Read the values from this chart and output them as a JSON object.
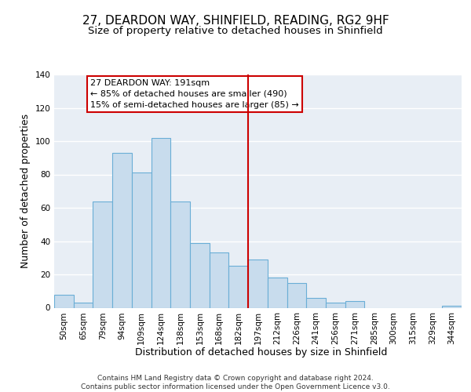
{
  "title": "27, DEARDON WAY, SHINFIELD, READING, RG2 9HF",
  "subtitle": "Size of property relative to detached houses in Shinfield",
  "xlabel": "Distribution of detached houses by size in Shinfield",
  "ylabel": "Number of detached properties",
  "bin_labels": [
    "50sqm",
    "65sqm",
    "79sqm",
    "94sqm",
    "109sqm",
    "124sqm",
    "138sqm",
    "153sqm",
    "168sqm",
    "182sqm",
    "197sqm",
    "212sqm",
    "226sqm",
    "241sqm",
    "256sqm",
    "271sqm",
    "285sqm",
    "300sqm",
    "315sqm",
    "329sqm",
    "344sqm"
  ],
  "bar_heights": [
    8,
    3,
    64,
    93,
    81,
    102,
    64,
    39,
    33,
    25,
    29,
    18,
    15,
    6,
    3,
    4,
    0,
    0,
    0,
    0,
    1
  ],
  "bar_color": "#c8dced",
  "bar_edge_color": "#6aaed6",
  "highlight_bar_index": 10,
  "highlight_line_color": "#cc0000",
  "annotation_box_text": "27 DEARDON WAY: 191sqm\n← 85% of detached houses are smaller (490)\n15% of semi-detached houses are larger (85) →",
  "annotation_box_edge_color": "#cc0000",
  "annotation_box_face_color": "#ffffff",
  "ylim": [
    0,
    140
  ],
  "yticks": [
    0,
    20,
    40,
    60,
    80,
    100,
    120,
    140
  ],
  "footer_text": "Contains HM Land Registry data © Crown copyright and database right 2024.\nContains public sector information licensed under the Open Government Licence v3.0.",
  "bg_color": "#e8eef5",
  "grid_color": "#ffffff",
  "title_fontsize": 11,
  "subtitle_fontsize": 9.5,
  "axis_label_fontsize": 9,
  "tick_fontsize": 7.5,
  "annotation_fontsize": 8,
  "footer_fontsize": 6.5
}
